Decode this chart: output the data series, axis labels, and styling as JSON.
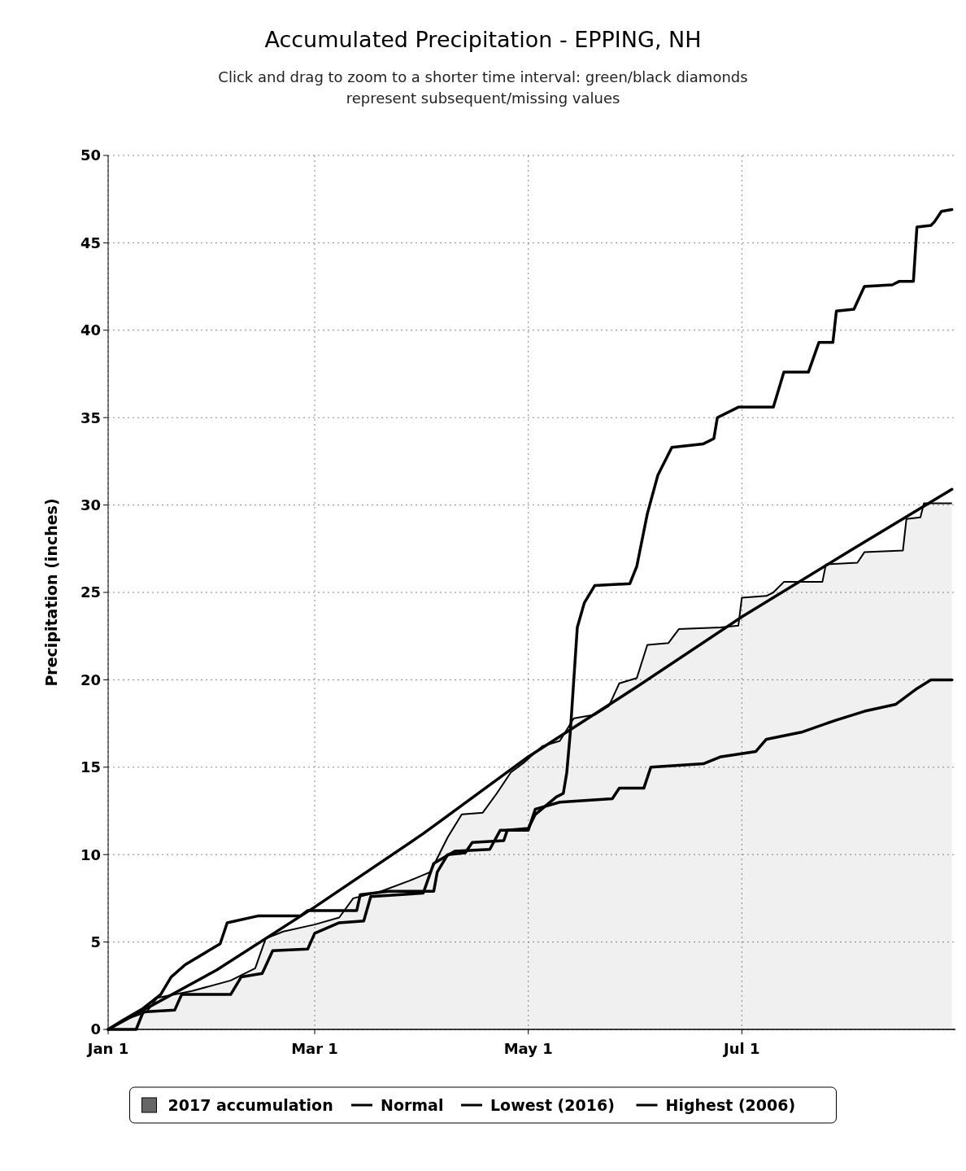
{
  "chart_data": {
    "type": "line",
    "title": "Accumulated Precipitation - EPPING, NH",
    "subtitle": "Click and drag to zoom to a shorter time interval: green/black diamonds represent subsequent/missing values",
    "ylabel": "Precipitation (inches)",
    "xlim": [
      "--01-01",
      "--08-31"
    ],
    "xticks": [
      {
        "value": "--01-01",
        "label": "Jan 1"
      },
      {
        "value": "--03-01",
        "label": "Mar 1"
      },
      {
        "value": "--05-01",
        "label": "May 1"
      },
      {
        "value": "--07-01",
        "label": "Jul 1"
      }
    ],
    "ylim": [
      0,
      50
    ],
    "yticks": [
      0,
      5,
      10,
      15,
      20,
      25,
      30,
      35,
      40,
      45,
      50
    ],
    "grid": true,
    "legend": "bottom",
    "line_style": "solid",
    "marker": "none",
    "series": [
      {
        "name": "2017 accumulation",
        "type": "area",
        "color": "#000000",
        "x": [
          "--01-01",
          "--01-05",
          "--01-12",
          "--01-15",
          "--01-25",
          "--02-05",
          "--02-12",
          "--02-15",
          "--02-20",
          "--03-01",
          "--03-08",
          "--03-12",
          "--03-20",
          "--03-28",
          "--04-03",
          "--04-08",
          "--04-12",
          "--04-18",
          "--04-22",
          "--04-26",
          "--04-30",
          "--05-05",
          "--05-10",
          "--05-14",
          "--05-20",
          "--05-24",
          "--05-27",
          "--06-01",
          "--06-04",
          "--06-10",
          "--06-13",
          "--06-25",
          "--06-30",
          "--07-01",
          "--07-08",
          "--07-10",
          "--07-13",
          "--07-24",
          "--07-25",
          "--08-03",
          "--08-05",
          "--08-16",
          "--08-17",
          "--08-21",
          "--08-22",
          "--08-30"
        ],
        "values": [
          0,
          0.5,
          1.0,
          1.8,
          2.2,
          2.8,
          3.5,
          5.2,
          5.6,
          6.0,
          6.4,
          7.5,
          7.9,
          8.5,
          9.0,
          11.0,
          12.3,
          12.4,
          13.5,
          14.7,
          15.3,
          16.2,
          16.5,
          17.8,
          18.0,
          18.5,
          19.8,
          20.1,
          22.0,
          22.1,
          22.9,
          23.0,
          23.1,
          24.7,
          24.8,
          25.0,
          25.6,
          25.6,
          26.6,
          26.7,
          27.3,
          27.4,
          29.2,
          29.3,
          30.1,
          30.1
        ]
      },
      {
        "name": "Normal",
        "color": "#000000",
        "x": [
          "--01-01",
          "--02-01",
          "--03-01",
          "--04-01",
          "--05-01",
          "--06-01",
          "--07-01",
          "--08-01",
          "--08-30"
        ],
        "values": [
          0,
          3.4,
          7.0,
          11.2,
          15.6,
          19.6,
          23.6,
          27.4,
          30.9
        ]
      },
      {
        "name": "Lowest (2016)",
        "color": "#000000",
        "x": [
          "--01-01",
          "--01-09",
          "--01-11",
          "--01-20",
          "--01-22",
          "--02-05",
          "--02-08",
          "--02-14",
          "--02-17",
          "--02-27",
          "--03-01",
          "--03-08",
          "--03-15",
          "--03-17",
          "--04-01",
          "--04-04",
          "--04-10",
          "--04-20",
          "--04-23",
          "--05-01",
          "--05-03",
          "--05-10",
          "--05-25",
          "--05-27",
          "--06-03",
          "--06-05",
          "--06-20",
          "--06-25",
          "--07-05",
          "--07-08",
          "--07-18",
          "--07-28",
          "--08-05",
          "--08-14",
          "--08-20",
          "--08-24",
          "--08-30"
        ],
        "values": [
          0,
          0,
          1.0,
          1.1,
          2.0,
          2.0,
          3.0,
          3.2,
          4.5,
          4.6,
          5.5,
          6.1,
          6.2,
          7.6,
          7.8,
          9.5,
          10.2,
          10.3,
          11.4,
          11.4,
          12.6,
          13.0,
          13.2,
          13.8,
          13.8,
          15.0,
          15.2,
          15.6,
          15.9,
          16.6,
          17.0,
          17.7,
          18.2,
          18.6,
          19.5,
          20.0,
          20.0
        ]
      },
      {
        "name": "Highest (2006)",
        "color": "#000000",
        "x": [
          "--01-01",
          "--01-05",
          "--01-11",
          "--01-16",
          "--01-19",
          "--01-23",
          "--02-02",
          "--02-04",
          "--02-13",
          "--02-25",
          "--02-27",
          "--03-13",
          "--03-14",
          "--03-22",
          "--04-04",
          "--04-05",
          "--04-08",
          "--04-13",
          "--04-15",
          "--04-24",
          "--04-25",
          "--05-01",
          "--05-03",
          "--05-09",
          "--05-11",
          "--05-12",
          "--05-13",
          "--05-15",
          "--05-17",
          "--05-20",
          "--05-30",
          "--06-01",
          "--06-04",
          "--06-07",
          "--06-11",
          "--06-20",
          "--06-23",
          "--06-24",
          "--06-30",
          "--07-10",
          "--07-13",
          "--07-20",
          "--07-23",
          "--07-27",
          "--07-28",
          "--08-02",
          "--08-05",
          "--08-13",
          "--08-15",
          "--08-19",
          "--08-20",
          "--08-24",
          "--08-25",
          "--08-27",
          "--08-30"
        ],
        "values": [
          0,
          0.5,
          1.2,
          2.0,
          3.0,
          3.7,
          4.9,
          6.1,
          6.5,
          6.5,
          6.8,
          6.8,
          7.7,
          7.9,
          7.9,
          9.0,
          10.0,
          10.1,
          10.7,
          10.8,
          11.4,
          11.5,
          12.3,
          13.3,
          13.5,
          14.7,
          17.0,
          23.0,
          24.4,
          25.4,
          25.5,
          26.5,
          29.5,
          31.7,
          33.3,
          33.5,
          33.8,
          35.0,
          35.6,
          35.6,
          37.6,
          37.6,
          39.3,
          39.3,
          41.1,
          41.2,
          42.5,
          42.6,
          42.8,
          42.8,
          45.9,
          46.0,
          46.2,
          46.8,
          46.9
        ]
      }
    ]
  }
}
